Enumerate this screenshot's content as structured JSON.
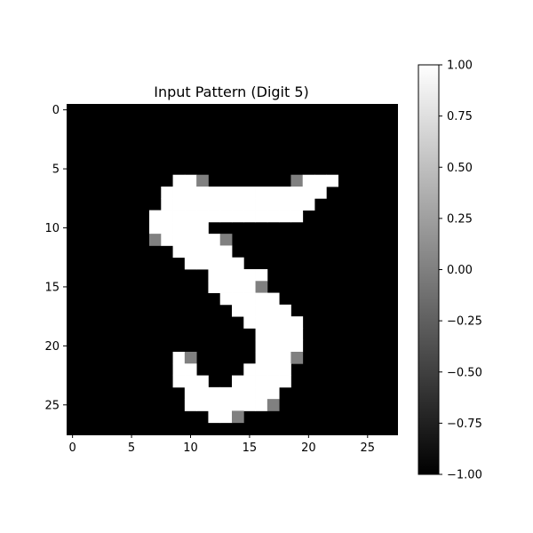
{
  "chart_data": {
    "type": "heatmap",
    "title": "Input Pattern (Digit 5)",
    "rows": 28,
    "cols": 28,
    "colormap": "gray",
    "vmin": -1.0,
    "vmax": 1.0,
    "x_ticks": [
      0,
      5,
      10,
      15,
      20,
      25
    ],
    "y_ticks": [
      0,
      5,
      10,
      15,
      20,
      25
    ],
    "colorbar_ticks": [
      "1.00",
      "0.75",
      "0.50",
      "0.25",
      "0.00",
      "−0.25",
      "−0.50",
      "−0.75",
      "−1.00"
    ],
    "colorbar_values": [
      1.0,
      0.75,
      0.5,
      0.25,
      0.0,
      -0.25,
      -0.5,
      -0.75,
      -1.0
    ],
    "background_value": -1.0,
    "pixels": [
      {
        "row": 6,
        "col": 9,
        "v": 1
      },
      {
        "row": 6,
        "col": 10,
        "v": 1
      },
      {
        "row": 6,
        "col": 11,
        "v": 0
      },
      {
        "row": 6,
        "col": 19,
        "v": 0
      },
      {
        "row": 6,
        "col": 20,
        "v": 1
      },
      {
        "row": 6,
        "col": 21,
        "v": 1
      },
      {
        "row": 6,
        "col": 22,
        "v": 1
      },
      {
        "row": 7,
        "col": 8,
        "v": 1
      },
      {
        "row": 7,
        "col": 9,
        "v": 1
      },
      {
        "row": 7,
        "col": 10,
        "v": 1
      },
      {
        "row": 7,
        "col": 11,
        "v": 1
      },
      {
        "row": 7,
        "col": 12,
        "v": 1
      },
      {
        "row": 7,
        "col": 13,
        "v": 1
      },
      {
        "row": 7,
        "col": 14,
        "v": 1
      },
      {
        "row": 7,
        "col": 15,
        "v": 1
      },
      {
        "row": 7,
        "col": 16,
        "v": 1
      },
      {
        "row": 7,
        "col": 17,
        "v": 1
      },
      {
        "row": 7,
        "col": 18,
        "v": 1
      },
      {
        "row": 7,
        "col": 19,
        "v": 1
      },
      {
        "row": 7,
        "col": 20,
        "v": 1
      },
      {
        "row": 7,
        "col": 21,
        "v": 1
      },
      {
        "row": 8,
        "col": 8,
        "v": 1
      },
      {
        "row": 8,
        "col": 9,
        "v": 1
      },
      {
        "row": 8,
        "col": 10,
        "v": 1
      },
      {
        "row": 8,
        "col": 11,
        "v": 1
      },
      {
        "row": 8,
        "col": 12,
        "v": 1
      },
      {
        "row": 8,
        "col": 13,
        "v": 1
      },
      {
        "row": 8,
        "col": 14,
        "v": 1
      },
      {
        "row": 8,
        "col": 15,
        "v": 1
      },
      {
        "row": 8,
        "col": 16,
        "v": 1
      },
      {
        "row": 8,
        "col": 17,
        "v": 1
      },
      {
        "row": 8,
        "col": 18,
        "v": 1
      },
      {
        "row": 8,
        "col": 19,
        "v": 1
      },
      {
        "row": 8,
        "col": 20,
        "v": 1
      },
      {
        "row": 9,
        "col": 7,
        "v": 1
      },
      {
        "row": 9,
        "col": 8,
        "v": 1
      },
      {
        "row": 9,
        "col": 9,
        "v": 1
      },
      {
        "row": 9,
        "col": 10,
        "v": 1
      },
      {
        "row": 9,
        "col": 11,
        "v": 1
      },
      {
        "row": 9,
        "col": 12,
        "v": 1
      },
      {
        "row": 9,
        "col": 13,
        "v": 1
      },
      {
        "row": 9,
        "col": 14,
        "v": 1
      },
      {
        "row": 9,
        "col": 15,
        "v": 1
      },
      {
        "row": 9,
        "col": 16,
        "v": 1
      },
      {
        "row": 9,
        "col": 17,
        "v": 1
      },
      {
        "row": 9,
        "col": 18,
        "v": 1
      },
      {
        "row": 9,
        "col": 19,
        "v": 1
      },
      {
        "row": 10,
        "col": 7,
        "v": 1
      },
      {
        "row": 10,
        "col": 8,
        "v": 1
      },
      {
        "row": 10,
        "col": 9,
        "v": 1
      },
      {
        "row": 10,
        "col": 10,
        "v": 1
      },
      {
        "row": 10,
        "col": 11,
        "v": 1
      },
      {
        "row": 11,
        "col": 7,
        "v": 0
      },
      {
        "row": 11,
        "col": 8,
        "v": 1
      },
      {
        "row": 11,
        "col": 9,
        "v": 1
      },
      {
        "row": 11,
        "col": 10,
        "v": 1
      },
      {
        "row": 11,
        "col": 11,
        "v": 1
      },
      {
        "row": 11,
        "col": 12,
        "v": 1
      },
      {
        "row": 11,
        "col": 13,
        "v": 0
      },
      {
        "row": 12,
        "col": 9,
        "v": 1
      },
      {
        "row": 12,
        "col": 10,
        "v": 1
      },
      {
        "row": 12,
        "col": 11,
        "v": 1
      },
      {
        "row": 12,
        "col": 12,
        "v": 1
      },
      {
        "row": 12,
        "col": 13,
        "v": 1
      },
      {
        "row": 13,
        "col": 10,
        "v": 1
      },
      {
        "row": 13,
        "col": 11,
        "v": 1
      },
      {
        "row": 13,
        "col": 12,
        "v": 1
      },
      {
        "row": 13,
        "col": 13,
        "v": 1
      },
      {
        "row": 13,
        "col": 14,
        "v": 1
      },
      {
        "row": 14,
        "col": 12,
        "v": 1
      },
      {
        "row": 14,
        "col": 13,
        "v": 1
      },
      {
        "row": 14,
        "col": 14,
        "v": 1
      },
      {
        "row": 14,
        "col": 15,
        "v": 1
      },
      {
        "row": 14,
        "col": 16,
        "v": 1
      },
      {
        "row": 15,
        "col": 12,
        "v": 1
      },
      {
        "row": 15,
        "col": 13,
        "v": 1
      },
      {
        "row": 15,
        "col": 14,
        "v": 1
      },
      {
        "row": 15,
        "col": 15,
        "v": 1
      },
      {
        "row": 15,
        "col": 16,
        "v": 0
      },
      {
        "row": 16,
        "col": 13,
        "v": 1
      },
      {
        "row": 16,
        "col": 14,
        "v": 1
      },
      {
        "row": 16,
        "col": 15,
        "v": 1
      },
      {
        "row": 16,
        "col": 16,
        "v": 1
      },
      {
        "row": 16,
        "col": 17,
        "v": 1
      },
      {
        "row": 17,
        "col": 14,
        "v": 1
      },
      {
        "row": 17,
        "col": 15,
        "v": 1
      },
      {
        "row": 17,
        "col": 16,
        "v": 1
      },
      {
        "row": 17,
        "col": 17,
        "v": 1
      },
      {
        "row": 17,
        "col": 18,
        "v": 1
      },
      {
        "row": 18,
        "col": 15,
        "v": 1
      },
      {
        "row": 18,
        "col": 16,
        "v": 1
      },
      {
        "row": 18,
        "col": 17,
        "v": 1
      },
      {
        "row": 18,
        "col": 18,
        "v": 1
      },
      {
        "row": 18,
        "col": 19,
        "v": 1
      },
      {
        "row": 19,
        "col": 16,
        "v": 1
      },
      {
        "row": 19,
        "col": 17,
        "v": 1
      },
      {
        "row": 19,
        "col": 18,
        "v": 1
      },
      {
        "row": 19,
        "col": 19,
        "v": 1
      },
      {
        "row": 20,
        "col": 16,
        "v": 1
      },
      {
        "row": 20,
        "col": 17,
        "v": 1
      },
      {
        "row": 20,
        "col": 18,
        "v": 1
      },
      {
        "row": 20,
        "col": 19,
        "v": 1
      },
      {
        "row": 21,
        "col": 9,
        "v": 1
      },
      {
        "row": 21,
        "col": 10,
        "v": 0
      },
      {
        "row": 21,
        "col": 16,
        "v": 1
      },
      {
        "row": 21,
        "col": 17,
        "v": 1
      },
      {
        "row": 21,
        "col": 18,
        "v": 1
      },
      {
        "row": 21,
        "col": 19,
        "v": 0
      },
      {
        "row": 22,
        "col": 9,
        "v": 1
      },
      {
        "row": 22,
        "col": 10,
        "v": 1
      },
      {
        "row": 22,
        "col": 15,
        "v": 1
      },
      {
        "row": 22,
        "col": 16,
        "v": 1
      },
      {
        "row": 22,
        "col": 17,
        "v": 1
      },
      {
        "row": 22,
        "col": 18,
        "v": 1
      },
      {
        "row": 23,
        "col": 9,
        "v": 1
      },
      {
        "row": 23,
        "col": 10,
        "v": 1
      },
      {
        "row": 23,
        "col": 11,
        "v": 1
      },
      {
        "row": 23,
        "col": 14,
        "v": 1
      },
      {
        "row": 23,
        "col": 15,
        "v": 1
      },
      {
        "row": 23,
        "col": 16,
        "v": 1
      },
      {
        "row": 23,
        "col": 17,
        "v": 1
      },
      {
        "row": 23,
        "col": 18,
        "v": 1
      },
      {
        "row": 24,
        "col": 10,
        "v": 1
      },
      {
        "row": 24,
        "col": 11,
        "v": 1
      },
      {
        "row": 24,
        "col": 12,
        "v": 1
      },
      {
        "row": 24,
        "col": 13,
        "v": 1
      },
      {
        "row": 24,
        "col": 14,
        "v": 1
      },
      {
        "row": 24,
        "col": 15,
        "v": 1
      },
      {
        "row": 24,
        "col": 16,
        "v": 1
      },
      {
        "row": 24,
        "col": 17,
        "v": 1
      },
      {
        "row": 25,
        "col": 10,
        "v": 1
      },
      {
        "row": 25,
        "col": 11,
        "v": 1
      },
      {
        "row": 25,
        "col": 12,
        "v": 1
      },
      {
        "row": 25,
        "col": 13,
        "v": 1
      },
      {
        "row": 25,
        "col": 14,
        "v": 1
      },
      {
        "row": 25,
        "col": 15,
        "v": 1
      },
      {
        "row": 25,
        "col": 16,
        "v": 1
      },
      {
        "row": 25,
        "col": 17,
        "v": 0
      },
      {
        "row": 26,
        "col": 12,
        "v": 1
      },
      {
        "row": 26,
        "col": 13,
        "v": 1
      },
      {
        "row": 26,
        "col": 14,
        "v": 0
      }
    ]
  }
}
